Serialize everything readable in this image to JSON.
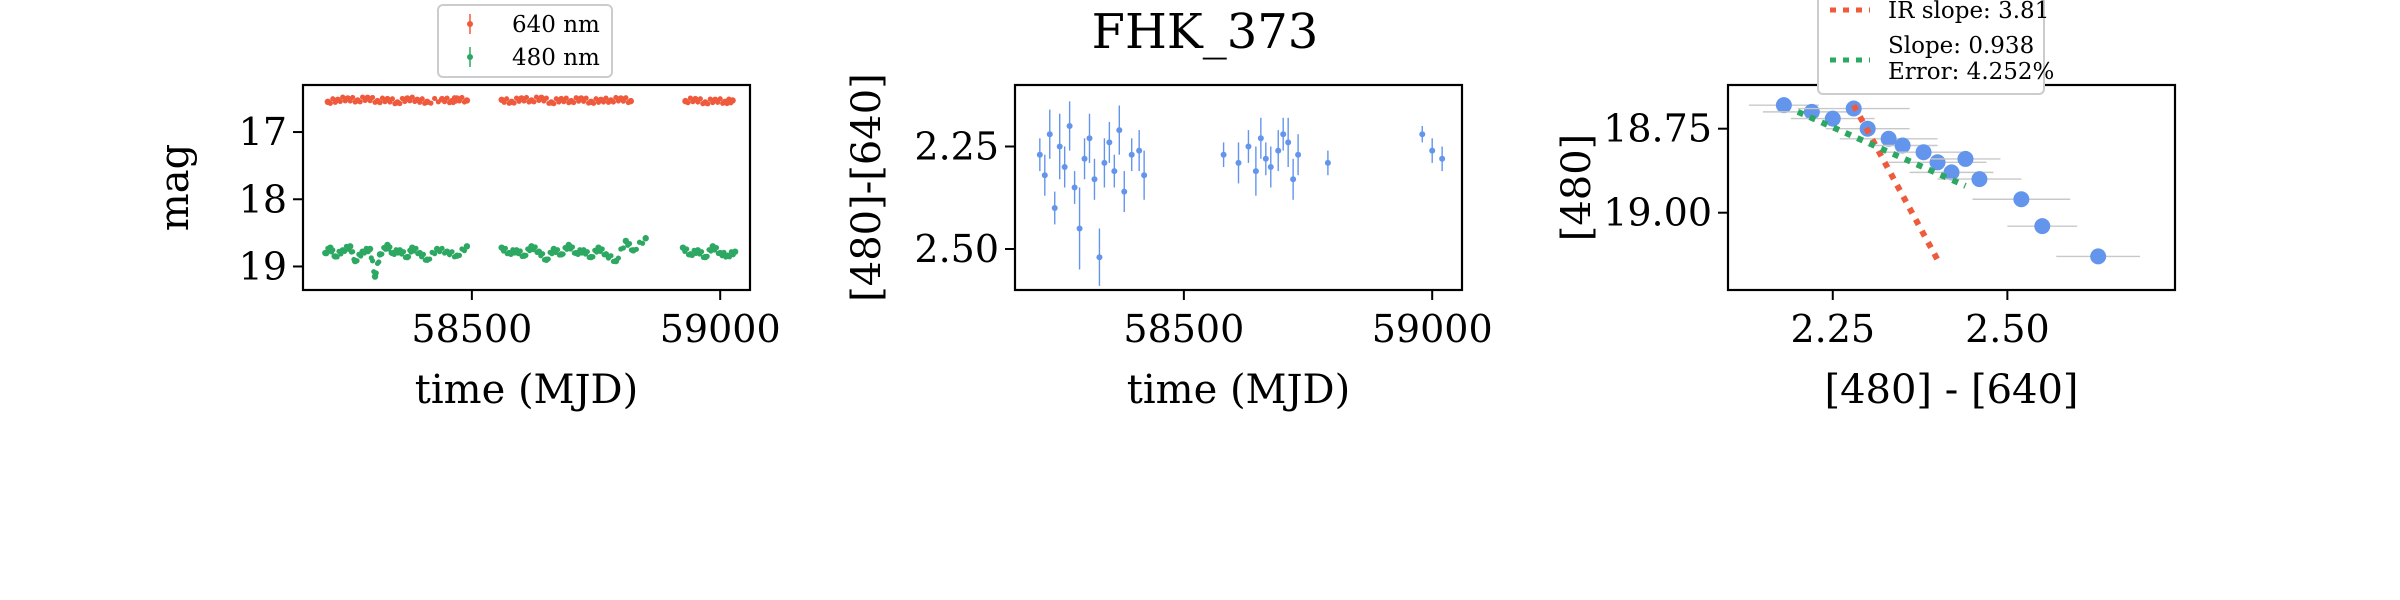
{
  "title": "FHK_373",
  "colors": {
    "red": "#f05a3c",
    "green": "#2ca862",
    "blue": "#6495ed",
    "error_gray": "#c8c8c8",
    "frame": "#000000"
  },
  "chart_data": [
    {
      "type": "scatter",
      "title": "",
      "xlabel": "time (MJD)",
      "ylabel": "mag",
      "xlim": [
        58160,
        59060
      ],
      "ylim": [
        19.35,
        16.3
      ],
      "y_inverted": true,
      "xticks": [
        58500,
        59000
      ],
      "xtick_labels": [
        "58500",
        "59000"
      ],
      "yticks": [
        17,
        18,
        19
      ],
      "ytick_labels": [
        "17",
        "18",
        "19"
      ],
      "legend": {
        "placement": "top-center",
        "entries": [
          "640 nm",
          "480 nm"
        ]
      },
      "series": [
        {
          "name": "640 nm",
          "color": "#f05a3c",
          "segments": [
            {
              "x": [
                58210,
                58230,
                58250,
                58270,
                58290,
                58310,
                58330,
                58350,
                58370,
                58390,
                58410,
                58440,
                58460,
                58470,
                58490
              ],
              "y": [
                16.55,
                16.52,
                16.5,
                16.53,
                16.49,
                16.54,
                16.51,
                16.56,
                16.5,
                16.52,
                16.55,
                16.51,
                16.54,
                16.5,
                16.53
              ]
            },
            {
              "x": [
                58560,
                58580,
                58600,
                58620,
                58640,
                58660,
                58680,
                58700,
                58720,
                58740,
                58760,
                58780,
                58800,
                58820
              ],
              "y": [
                16.52,
                16.55,
                16.5,
                16.53,
                16.49,
                16.56,
                16.51,
                16.54,
                16.5,
                16.55,
                16.52,
                16.53,
                16.5,
                16.54
              ]
            },
            {
              "x": [
                58930,
                58950,
                58970,
                58990,
                59010,
                59025
              ],
              "y": [
                16.54,
                16.51,
                16.56,
                16.52,
                16.55,
                16.53
              ]
            }
          ]
        },
        {
          "name": "480 nm",
          "color": "#2ca862",
          "segments": [
            {
              "x": [
                58205,
                58215,
                58225,
                58240,
                58255,
                58265,
                58280,
                58295,
                58305,
                58315,
                58330,
                58340,
                58355,
                58370,
                58380,
                58395,
                58410,
                58430,
                58450,
                58470,
                58490
              ],
              "y": [
                18.8,
                18.72,
                18.85,
                18.76,
                18.7,
                18.92,
                18.78,
                18.74,
                19.15,
                18.82,
                18.68,
                18.8,
                18.76,
                18.86,
                18.72,
                18.8,
                18.9,
                18.74,
                18.78,
                18.84,
                18.7
              ]
            },
            {
              "x": [
                58560,
                58575,
                58590,
                58605,
                58620,
                58635,
                58650,
                58665,
                58680,
                58695,
                58710,
                58725,
                58740,
                58755,
                58770,
                58790,
                58810,
                58825,
                58850
              ],
              "y": [
                18.72,
                18.8,
                18.76,
                18.84,
                18.7,
                18.78,
                18.9,
                18.74,
                18.82,
                18.68,
                18.8,
                18.76,
                18.86,
                18.72,
                18.82,
                18.92,
                18.62,
                18.76,
                18.58
              ]
            },
            {
              "x": [
                58925,
                58940,
                58955,
                58970,
                58985,
                59000,
                59015,
                59030
              ],
              "y": [
                18.72,
                18.82,
                18.76,
                18.86,
                18.7,
                18.8,
                18.84,
                18.78
              ]
            }
          ]
        }
      ]
    },
    {
      "type": "scatter",
      "title": "FHK_373",
      "xlabel": "time (MJD)",
      "ylabel": "[480]-[640]",
      "xlim": [
        58160,
        59060
      ],
      "ylim": [
        2.6,
        2.1
      ],
      "y_inverted": true,
      "xticks": [
        58500,
        59000
      ],
      "xtick_labels": [
        "58500",
        "59000"
      ],
      "yticks": [
        2.25,
        2.5
      ],
      "ytick_labels": [
        "2.25",
        "2.50"
      ],
      "series": [
        {
          "name": "",
          "color": "#6495ed",
          "x": [
            58210,
            58220,
            58230,
            58240,
            58250,
            58260,
            58270,
            58280,
            58290,
            58300,
            58310,
            58320,
            58330,
            58340,
            58350,
            58360,
            58370,
            58380,
            58395,
            58410,
            58420,
            58580,
            58610,
            58630,
            58645,
            58655,
            58665,
            58675,
            58690,
            58700,
            58710,
            58720,
            58730,
            58790,
            58980,
            59000,
            59020
          ],
          "y": [
            2.27,
            2.32,
            2.22,
            2.4,
            2.25,
            2.3,
            2.2,
            2.35,
            2.45,
            2.28,
            2.23,
            2.33,
            2.52,
            2.29,
            2.24,
            2.31,
            2.21,
            2.36,
            2.27,
            2.26,
            2.32,
            2.27,
            2.29,
            2.25,
            2.31,
            2.23,
            2.28,
            2.3,
            2.26,
            2.22,
            2.24,
            2.33,
            2.27,
            2.29,
            2.22,
            2.26,
            2.28
          ],
          "err": [
            0.04,
            0.05,
            0.06,
            0.04,
            0.08,
            0.05,
            0.06,
            0.04,
            0.1,
            0.05,
            0.06,
            0.05,
            0.07,
            0.06,
            0.05,
            0.04,
            0.06,
            0.05,
            0.04,
            0.05,
            0.06,
            0.03,
            0.05,
            0.04,
            0.06,
            0.05,
            0.04,
            0.05,
            0.05,
            0.04,
            0.06,
            0.05,
            0.05,
            0.03,
            0.02,
            0.03,
            0.03
          ]
        }
      ]
    },
    {
      "type": "scatter",
      "title": "",
      "xlabel": "[480] - [640]",
      "ylabel": "[480]",
      "xlim": [
        2.1,
        2.74
      ],
      "ylim": [
        19.23,
        18.62
      ],
      "y_inverted": true,
      "xticks": [
        2.25,
        2.5
      ],
      "xtick_labels": [
        "2.25",
        "2.50"
      ],
      "yticks": [
        18.75,
        19.0
      ],
      "ytick_labels": [
        "18.75",
        "19.00"
      ],
      "legend": {
        "placement": "top-center",
        "entries": [
          "IR slope: 3.81",
          "Slope: 0.938\nError: 4.252%"
        ]
      },
      "series": [
        {
          "name": "",
          "color": "#6495ed",
          "x": [
            2.18,
            2.22,
            2.25,
            2.28,
            2.3,
            2.33,
            2.35,
            2.38,
            2.4,
            2.42,
            2.44,
            2.46,
            2.52,
            2.55,
            2.63
          ],
          "y": [
            18.68,
            18.7,
            18.72,
            18.69,
            18.75,
            18.78,
            18.8,
            18.82,
            18.85,
            18.88,
            18.84,
            18.9,
            18.96,
            19.04,
            19.13
          ],
          "xerr": [
            0.05,
            0.07,
            0.06,
            0.08,
            0.06,
            0.07,
            0.05,
            0.06,
            0.07,
            0.06,
            0.05,
            0.06,
            0.07,
            0.05,
            0.06
          ]
        }
      ],
      "fits": [
        {
          "name": "IR slope: 3.81",
          "color": "#f05a3c",
          "style": "dotted",
          "x": [
            2.28,
            2.4
          ],
          "y": [
            18.68,
            19.14
          ]
        },
        {
          "name": "Slope: 0.938",
          "color": "#2ca862",
          "style": "dotted",
          "x": [
            2.2,
            2.44
          ],
          "y": [
            18.7,
            18.92
          ]
        }
      ]
    }
  ]
}
